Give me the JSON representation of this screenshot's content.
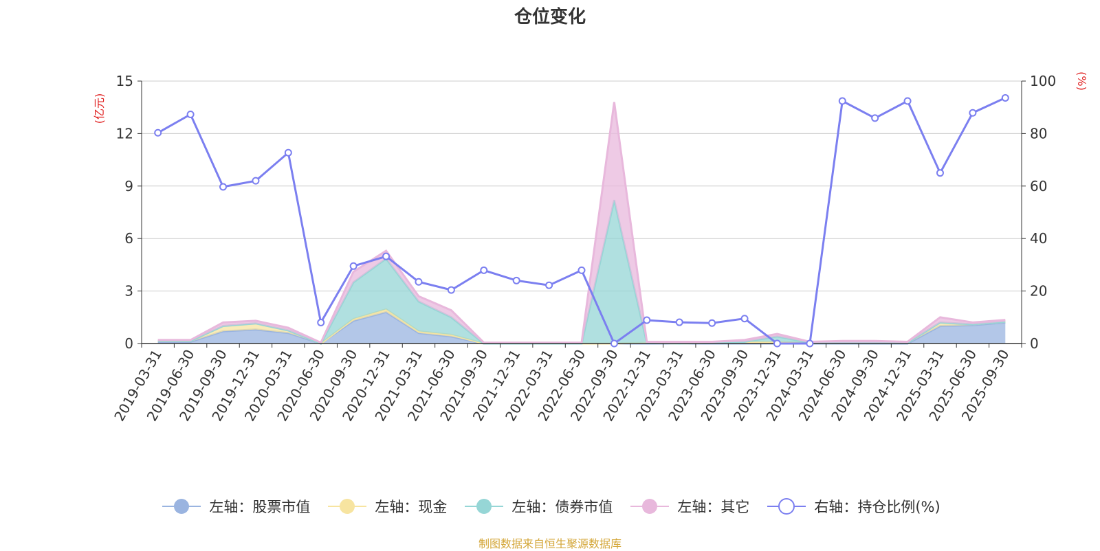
{
  "chart_data": {
    "type": "area",
    "title": "仓位变化",
    "left_axis_unit": "(亿元)",
    "right_axis_unit": "(%)",
    "left_ylim": [
      0,
      15
    ],
    "left_ticks": [
      0,
      3,
      6,
      9,
      12,
      15
    ],
    "right_ylim": [
      0,
      100
    ],
    "right_ticks": [
      0,
      20,
      40,
      60,
      80,
      100
    ],
    "grid": true,
    "legend_position": "bottom",
    "categories": [
      "2019-03-31",
      "2019-06-30",
      "2019-09-30",
      "2019-12-31",
      "2020-03-31",
      "2020-06-30",
      "2020-09-30",
      "2020-12-31",
      "2021-03-31",
      "2021-06-30",
      "2021-09-30",
      "2021-12-31",
      "2022-03-31",
      "2022-06-30",
      "2022-09-30",
      "2022-12-31",
      "2023-03-31",
      "2023-06-30",
      "2023-09-30",
      "2023-12-31",
      "2024-03-31",
      "2024-06-30",
      "2024-09-30",
      "2024-12-31",
      "2025-03-31",
      "2025-06-30",
      "2025-09-30"
    ],
    "series": [
      {
        "name": "左轴：股票市值",
        "axis": "left",
        "kind": "stacked-area",
        "color": "#9ab4e0",
        "values": [
          0.1,
          0.1,
          0.7,
          0.8,
          0.6,
          0.0,
          1.3,
          1.8,
          0.6,
          0.4,
          0.0,
          0.0,
          0.0,
          0.0,
          0.0,
          0.0,
          0.0,
          0.0,
          0.0,
          0.0,
          0.0,
          0.0,
          0.0,
          0.0,
          1.0,
          1.05,
          1.2
        ]
      },
      {
        "name": "左轴：现金",
        "axis": "left",
        "kind": "stacked-area",
        "color": "#f7e4a0",
        "values": [
          0.05,
          0.05,
          0.3,
          0.35,
          0.15,
          0.0,
          0.1,
          0.15,
          0.1,
          0.1,
          0.0,
          0.0,
          0.0,
          0.0,
          0.0,
          0.05,
          0.0,
          0.05,
          0.1,
          0.1,
          0.05,
          0.05,
          0.05,
          0.05,
          0.2,
          0.05,
          0.05
        ]
      },
      {
        "name": "左轴：债券市值",
        "axis": "left",
        "kind": "stacked-area",
        "color": "#96d6d6",
        "values": [
          0.0,
          0.0,
          0.0,
          0.0,
          0.0,
          0.0,
          2.1,
          2.9,
          1.7,
          1.0,
          0.0,
          0.0,
          0.0,
          0.0,
          8.2,
          0.0,
          0.0,
          0.0,
          0.0,
          0.3,
          0.0,
          0.0,
          0.0,
          0.0,
          0.0,
          0.0,
          0.0
        ]
      },
      {
        "name": "左轴：其它",
        "axis": "left",
        "kind": "stacked-area",
        "color": "#e8b8dc",
        "values": [
          0.05,
          0.05,
          0.2,
          0.15,
          0.15,
          0.05,
          0.6,
          0.45,
          0.3,
          0.4,
          0.05,
          0.05,
          0.05,
          0.05,
          5.6,
          0.05,
          0.1,
          0.05,
          0.1,
          0.15,
          0.05,
          0.1,
          0.1,
          0.05,
          0.3,
          0.1,
          0.1
        ]
      },
      {
        "name": "右轴：持仓比例(%)",
        "axis": "right",
        "kind": "line",
        "color": "#7b7ff0",
        "values": [
          80.3,
          87.3,
          59.7,
          62.0,
          72.7,
          8.0,
          29.5,
          33.2,
          23.5,
          20.4,
          27.9,
          24.0,
          22.2,
          27.9,
          0.0,
          8.9,
          8.1,
          7.8,
          9.5,
          0.0,
          0.0,
          92.4,
          85.9,
          92.4,
          65.0,
          87.9,
          93.6
        ]
      }
    ]
  },
  "source_note": "制图数据来自恒生聚源数据库"
}
